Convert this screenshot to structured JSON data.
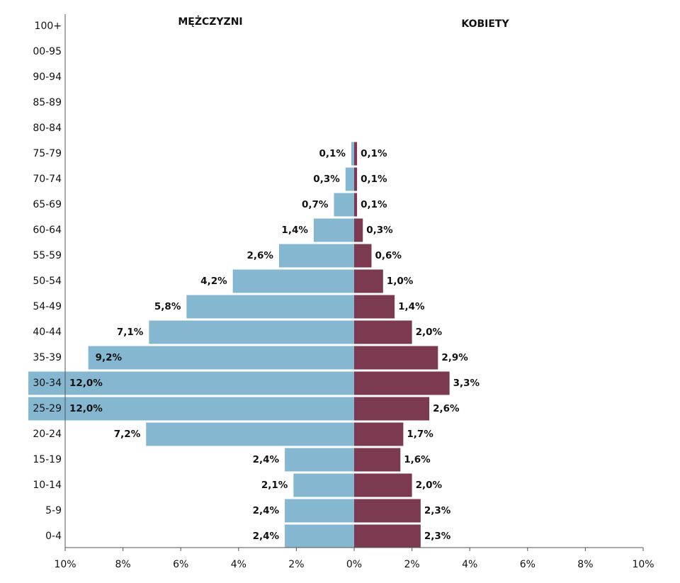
{
  "chart_data": {
    "type": "population_pyramid",
    "categories": [
      "100+",
      "00-95",
      "90-94",
      "85-89",
      "80-84",
      "75-79",
      "70-74",
      "65-69",
      "60-64",
      "55-59",
      "50-54",
      "54-49",
      "40-44",
      "35-39",
      "30-34",
      "25-29",
      "20-24",
      "15-19",
      "10-14",
      "5-9",
      "0-4"
    ],
    "series": [
      {
        "name": "MĘŻCZYZNI",
        "color": "#85b8d0",
        "side": "left",
        "values": [
          null,
          null,
          null,
          null,
          null,
          0.1,
          0.3,
          0.7,
          1.4,
          2.6,
          4.2,
          5.8,
          7.1,
          9.2,
          12.0,
          12.0,
          7.2,
          2.4,
          2.1,
          2.4,
          2.4
        ],
        "value_labels": [
          null,
          null,
          null,
          null,
          null,
          "0,1%",
          "0,3%",
          "0,7%",
          "1,4%",
          "2,6%",
          "4,2%",
          "5,8%",
          "7,1%",
          "9,2%",
          "12,0%",
          "12,0%",
          "7,2%",
          "2,4%",
          "2,1%",
          "2,4%",
          "2,4%"
        ]
      },
      {
        "name": "KOBIETY",
        "color": "#7b3a50",
        "side": "right",
        "values": [
          null,
          null,
          null,
          null,
          null,
          0.1,
          0.1,
          0.1,
          0.3,
          0.6,
          1.0,
          1.4,
          2.0,
          2.9,
          3.3,
          2.6,
          1.7,
          1.6,
          2.0,
          2.3,
          2.3
        ],
        "value_labels": [
          null,
          null,
          null,
          null,
          null,
          "0,1%",
          "0,1%",
          "0,1%",
          "0,3%",
          "0,6%",
          "1,0%",
          "1,4%",
          "2,0%",
          "2,9%",
          "3,3%",
          "2,6%",
          "1,7%",
          "1,6%",
          "2,0%",
          "2,3%",
          "2,3%"
        ]
      }
    ],
    "xlim": [
      -10,
      10
    ],
    "xticks": [
      {
        "value": -10,
        "label": "10%"
      },
      {
        "value": -8,
        "label": "8%"
      },
      {
        "value": -6,
        "label": "6%"
      },
      {
        "value": -4,
        "label": "4%"
      },
      {
        "value": -2,
        "label": "2%"
      },
      {
        "value": 0,
        "label": "0%"
      },
      {
        "value": 2,
        "label": "2%"
      },
      {
        "value": 4,
        "label": "4%"
      },
      {
        "value": 6,
        "label": "6%"
      },
      {
        "value": 8,
        "label": "8%"
      },
      {
        "value": 10,
        "label": "10%"
      }
    ]
  }
}
